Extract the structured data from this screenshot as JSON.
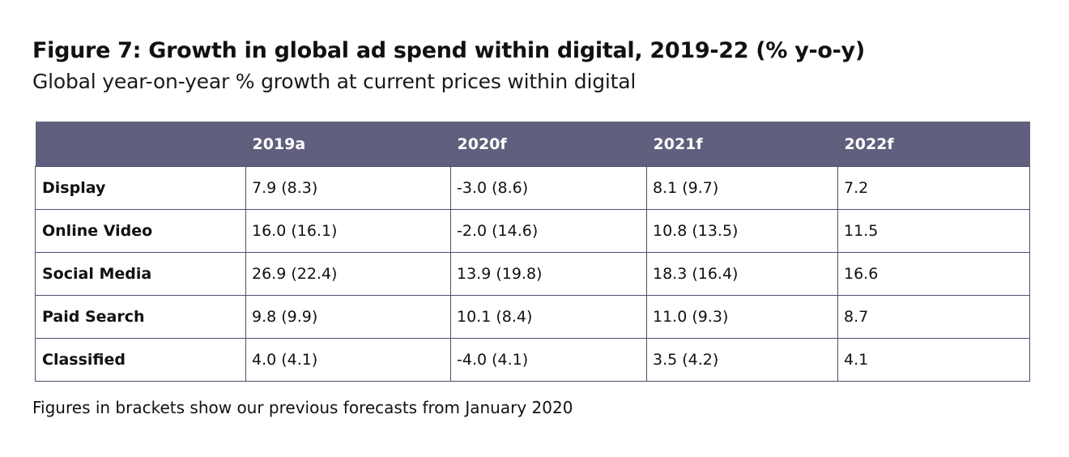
{
  "figure": {
    "title": "Figure 7: Growth in global ad spend within digital, 2019-22 (% y-o-y)",
    "subtitle": "Global year-on-year % growth at current prices within digital",
    "note": "Figures in brackets show our previous forecasts from January 2020"
  },
  "chart_data": {
    "type": "table",
    "header_color": "#615f7e",
    "columns": [
      "",
      "2019a",
      "2020f",
      "2021f",
      "2022f"
    ],
    "rows": [
      {
        "label": "Display",
        "cells": [
          "7.9 (8.3)",
          "-3.0 (8.6)",
          "8.1 (9.7)",
          "7.2"
        ]
      },
      {
        "label": "Online Video",
        "cells": [
          "16.0 (16.1)",
          "-2.0 (14.6)",
          "10.8 (13.5)",
          "11.5"
        ]
      },
      {
        "label": "Social Media",
        "cells": [
          "26.9 (22.4)",
          "13.9 (19.8)",
          "18.3 (16.4)",
          "16.6"
        ]
      },
      {
        "label": "Paid Search",
        "cells": [
          "9.8 (9.9)",
          "10.1 (8.4)",
          "11.0 (9.3)",
          "8.7"
        ]
      },
      {
        "label": "Classified",
        "cells": [
          "4.0 (4.1)",
          "-4.0 (4.1)",
          "3.5 (4.2)",
          "4.1"
        ]
      }
    ]
  }
}
